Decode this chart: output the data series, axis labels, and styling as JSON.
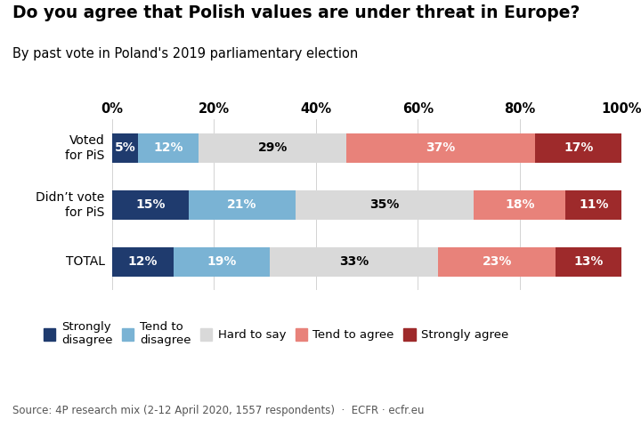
{
  "title": "Do you agree that Polish values are under threat in Europe?",
  "subtitle": "By past vote in Poland's 2019 parliamentary election",
  "categories": [
    "Voted\nfor PiS",
    "Didn’t vote\nfor PiS",
    "TOTAL"
  ],
  "segments": {
    "Strongly\ndisagree": [
      5,
      15,
      12
    ],
    "Tend to\ndisagree": [
      12,
      21,
      19
    ],
    "Hard to say": [
      29,
      35,
      33
    ],
    "Tend to agree": [
      37,
      18,
      23
    ],
    "Strongly agree": [
      17,
      11,
      13
    ]
  },
  "colors": {
    "Strongly\ndisagree": "#1f3b6e",
    "Tend to\ndisagree": "#7ab3d4",
    "Hard to say": "#d9d9d9",
    "Tend to agree": "#e8827a",
    "Strongly agree": "#9e2a2b"
  },
  "source": "Source: 4P research mix (2-12 April 2020, 1557 respondents)  ·  ECFR · ecfr.eu",
  "bar_height": 0.52,
  "xlim": [
    0,
    100
  ],
  "xticks": [
    0,
    20,
    40,
    60,
    80,
    100
  ],
  "background_color": "#ffffff",
  "title_fontsize": 13.5,
  "subtitle_fontsize": 10.5,
  "label_fontsize": 10,
  "tick_fontsize": 10.5,
  "source_fontsize": 8.5,
  "legend_fontsize": 9.5
}
